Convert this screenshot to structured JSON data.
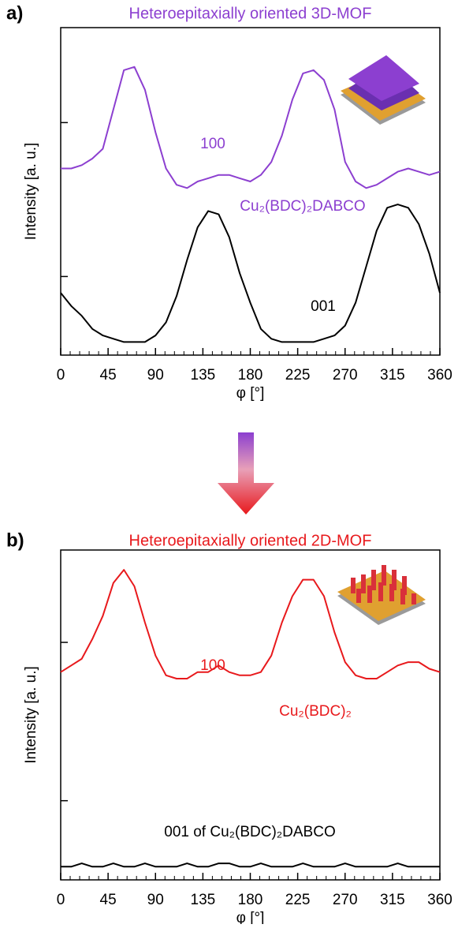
{
  "chart_data": [
    {
      "type": "line",
      "panel": "a)",
      "title": "Heteroepitaxially oriented 3D-MOF",
      "title_color": "#8c3fd0",
      "x_label": "φ [°]",
      "y_label": "Intensity [a. u.]",
      "annotations": [
        "100",
        "Cu₂(BDC)₂DABCO",
        "001"
      ],
      "x": [
        0,
        10,
        20,
        30,
        40,
        50,
        60,
        70,
        80,
        90,
        100,
        110,
        120,
        130,
        140,
        150,
        160,
        170,
        180,
        190,
        200,
        210,
        220,
        230,
        240,
        250,
        260,
        270,
        280,
        290,
        300,
        310,
        320,
        330,
        340,
        350,
        360
      ],
      "series": [
        {
          "name": "100",
          "color": "#8c3fd0",
          "values": [
            57,
            57,
            58,
            60,
            63,
            75,
            87,
            88,
            81,
            68,
            57,
            52,
            51,
            53,
            54,
            55,
            55,
            54,
            53,
            55,
            59,
            67,
            78,
            86,
            87,
            84,
            75,
            59,
            53,
            51,
            52,
            54,
            56,
            57,
            56,
            55,
            56
          ]
        },
        {
          "name": "001",
          "color": "#000000",
          "values": [
            19,
            15,
            12,
            8,
            6,
            5,
            4,
            4,
            4,
            6,
            10,
            18,
            29,
            39,
            44,
            43,
            36,
            25,
            16,
            8,
            5,
            4,
            4,
            4,
            4,
            5,
            6,
            9,
            16,
            27,
            38,
            45,
            46,
            45,
            40,
            31,
            19
          ]
        }
      ],
      "xlim": [
        0,
        360
      ],
      "xticks": [
        0,
        45,
        90,
        135,
        180,
        225,
        270,
        315,
        360
      ],
      "ylim": [
        0,
        100
      ],
      "yticks": [
        {
          "value": 71,
          "label": null
        },
        {
          "value": 24,
          "label": null
        }
      ]
    },
    {
      "type": "line",
      "panel": "b)",
      "title": "Heteroepitaxially oriented 2D-MOF",
      "title_color": "#e8191c",
      "x_label": "φ [°]",
      "y_label": "Intensity [a. u.]",
      "annotations": [
        "100",
        "Cu₂(BDC)₂",
        "001 of Cu₂(BDC)₂DABCO"
      ],
      "x": [
        0,
        10,
        20,
        30,
        40,
        50,
        60,
        70,
        80,
        90,
        100,
        110,
        120,
        130,
        140,
        150,
        160,
        170,
        180,
        190,
        200,
        210,
        220,
        230,
        240,
        250,
        260,
        270,
        280,
        290,
        300,
        310,
        320,
        330,
        340,
        350,
        360
      ],
      "series": [
        {
          "name": "100",
          "color": "#e8191c",
          "values": [
            63,
            65,
            67,
            73,
            80,
            90,
            94,
            89,
            78,
            68,
            62,
            61,
            61,
            63,
            63,
            65,
            63,
            62,
            62,
            63,
            68,
            78,
            86,
            91,
            91,
            86,
            75,
            66,
            62,
            61,
            61,
            63,
            65,
            66,
            66,
            64,
            63
          ]
        },
        {
          "name": "001 of Cu₂(BDC)₂DABCO",
          "color": "#000000",
          "values": [
            4,
            4,
            5,
            4,
            4,
            5,
            4,
            4,
            5,
            4,
            4,
            4,
            5,
            4,
            4,
            5,
            5,
            4,
            4,
            5,
            4,
            4,
            4,
            5,
            4,
            4,
            4,
            5,
            4,
            4,
            4,
            4,
            5,
            4,
            4,
            4,
            4
          ]
        }
      ],
      "xlim": [
        0,
        360
      ],
      "xticks": [
        0,
        45,
        90,
        135,
        180,
        225,
        270,
        315,
        360
      ],
      "ylim": [
        0,
        100
      ],
      "yticks": [
        {
          "value": 72,
          "label": null
        },
        {
          "value": 24,
          "label": null
        }
      ]
    }
  ]
}
